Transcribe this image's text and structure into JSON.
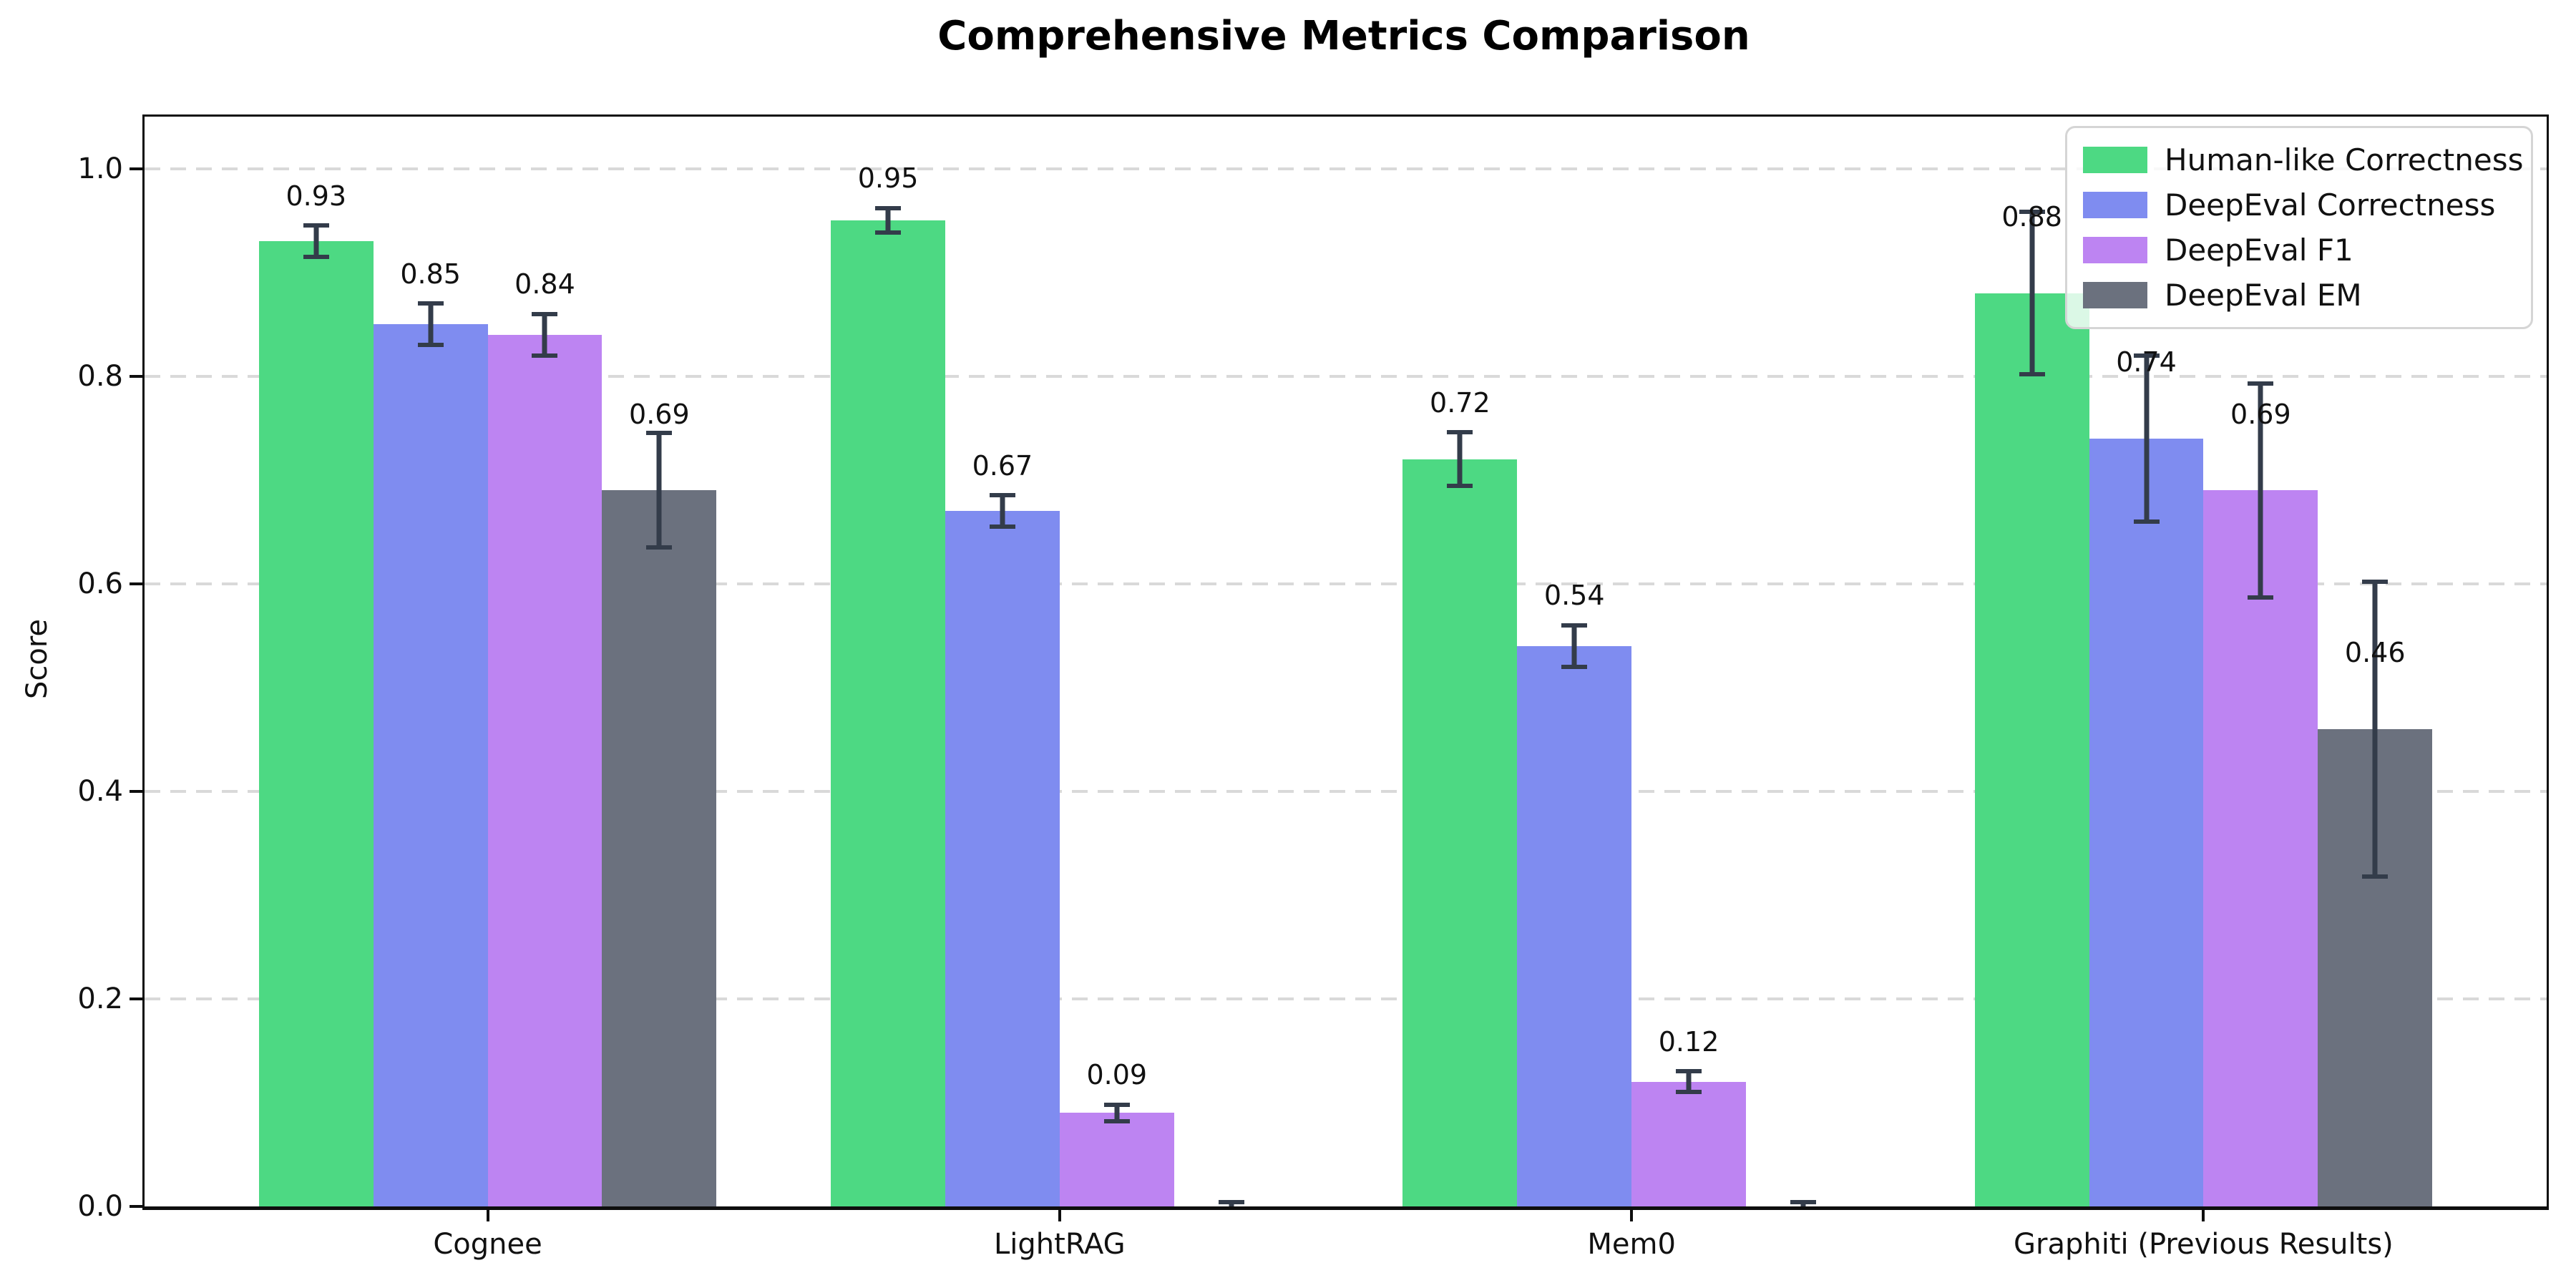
{
  "chart_data": {
    "type": "bar",
    "title": "Comprehensive Metrics Comparison",
    "xlabel": "",
    "ylabel": "Score",
    "categories": [
      "Cognee",
      "LightRAG",
      "Mem0",
      "Graphiti (Previous Results)"
    ],
    "series": [
      {
        "name": "Human-like Correctness",
        "color": "#4dd983",
        "values": [
          0.93,
          0.95,
          0.72,
          0.88
        ],
        "errors": [
          0.015,
          0.012,
          0.026,
          0.078
        ]
      },
      {
        "name": "DeepEval Correctness",
        "color": "#7f8cf0",
        "values": [
          0.85,
          0.67,
          0.54,
          0.74
        ],
        "errors": [
          0.02,
          0.015,
          0.02,
          0.08
        ]
      },
      {
        "name": "DeepEval F1",
        "color": "#bd84f2",
        "values": [
          0.84,
          0.09,
          0.12,
          0.69
        ],
        "errors": [
          0.02,
          0.008,
          0.01,
          0.103
        ]
      },
      {
        "name": "DeepEval EM",
        "color": "#6b717e",
        "values": [
          0.69,
          0.0,
          0.0,
          0.46
        ],
        "errors": [
          0.055,
          0.004,
          0.004,
          0.142
        ]
      }
    ],
    "bar_labels": [
      [
        "0.93",
        "0.95",
        "0.72",
        "0.88"
      ],
      [
        "0.85",
        "0.67",
        "0.54",
        "0.74"
      ],
      [
        "0.84",
        "0.09",
        "0.12",
        "0.69"
      ],
      [
        "0.69",
        "",
        "",
        "0.46"
      ]
    ],
    "yticks": [
      "0.0",
      "0.2",
      "0.4",
      "0.6",
      "0.8",
      "1.0"
    ],
    "ylim": [
      0,
      1.05
    ],
    "xlim": [
      -0.6,
      3.6
    ],
    "bar_width": 0.2,
    "grid": "horizontal dashed",
    "grid_color": "#d9d9d9",
    "errorbar_color": "#333c4a",
    "legend_position": "upper right",
    "legend_entries": [
      "Human-like Correctness",
      "DeepEval Correctness",
      "DeepEval F1",
      "DeepEval EM"
    ]
  }
}
